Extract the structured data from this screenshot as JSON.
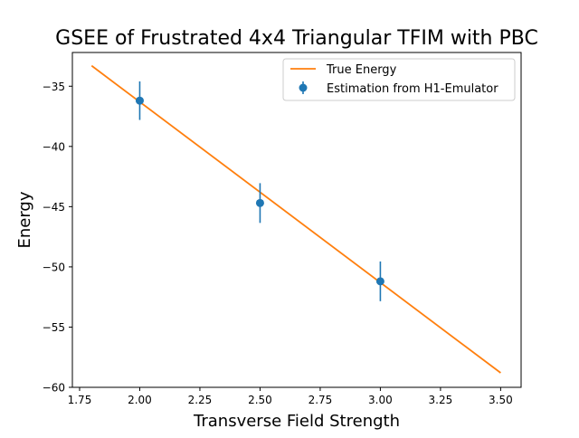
{
  "chart_data": {
    "type": "line",
    "title": "GSEE of Frustrated 4x4 Triangular TFIM with PBC",
    "xlabel": "Transverse Field Strength",
    "ylabel": "Energy",
    "xlim": [
      1.72,
      3.585
    ],
    "ylim": [
      -60,
      -32.2
    ],
    "xticks": [
      1.75,
      2.0,
      2.25,
      2.5,
      2.75,
      3.0,
      3.25,
      3.5
    ],
    "xtick_labels": [
      "1.75",
      "2.00",
      "2.25",
      "2.50",
      "2.75",
      "3.00",
      "3.25",
      "3.50"
    ],
    "yticks": [
      -60,
      -55,
      -50,
      -45,
      -40,
      -35
    ],
    "ytick_labels": [
      "−60",
      "−55",
      "−50",
      "−45",
      "−40",
      "−35"
    ],
    "grid": false,
    "legend_position": "top-right",
    "series": [
      {
        "name": "True Energy",
        "kind": "line",
        "color": "#ff7f0e",
        "x": [
          1.8,
          3.5
        ],
        "y": [
          -33.3,
          -58.8
        ]
      },
      {
        "name": "Estimation from H1-Emulator",
        "kind": "errorbar",
        "color": "#1f77b4",
        "x": [
          2.0,
          2.5,
          3.0
        ],
        "y": [
          -36.2,
          -44.7,
          -51.2
        ],
        "yerr": [
          1.6,
          1.65,
          1.65
        ]
      }
    ]
  }
}
